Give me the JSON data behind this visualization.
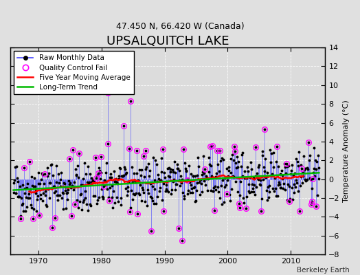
{
  "title": "UPSALQUITCH LAKE",
  "subtitle": "47.450 N, 66.420 W (Canada)",
  "ylabel": "Temperature Anomaly (°C)",
  "credit": "Berkeley Earth",
  "ylim": [
    -8,
    14
  ],
  "xlim": [
    1965.5,
    2015.5
  ],
  "yticks": [
    -8,
    -6,
    -4,
    -2,
    0,
    2,
    4,
    6,
    8,
    10,
    12,
    14
  ],
  "xticks": [
    1970,
    1980,
    1990,
    2000,
    2010
  ],
  "bg_color": "#e0e0e0",
  "plot_bg_color": "#dcdcdc",
  "raw_line_color": "#4444ff",
  "raw_dot_color": "#000000",
  "qc_fail_color": "#ff00ff",
  "moving_avg_color": "#ff0000",
  "trend_color": "#00bb00",
  "title_fontsize": 13,
  "subtitle_fontsize": 9,
  "ylabel_fontsize": 8,
  "tick_labelsize": 8
}
